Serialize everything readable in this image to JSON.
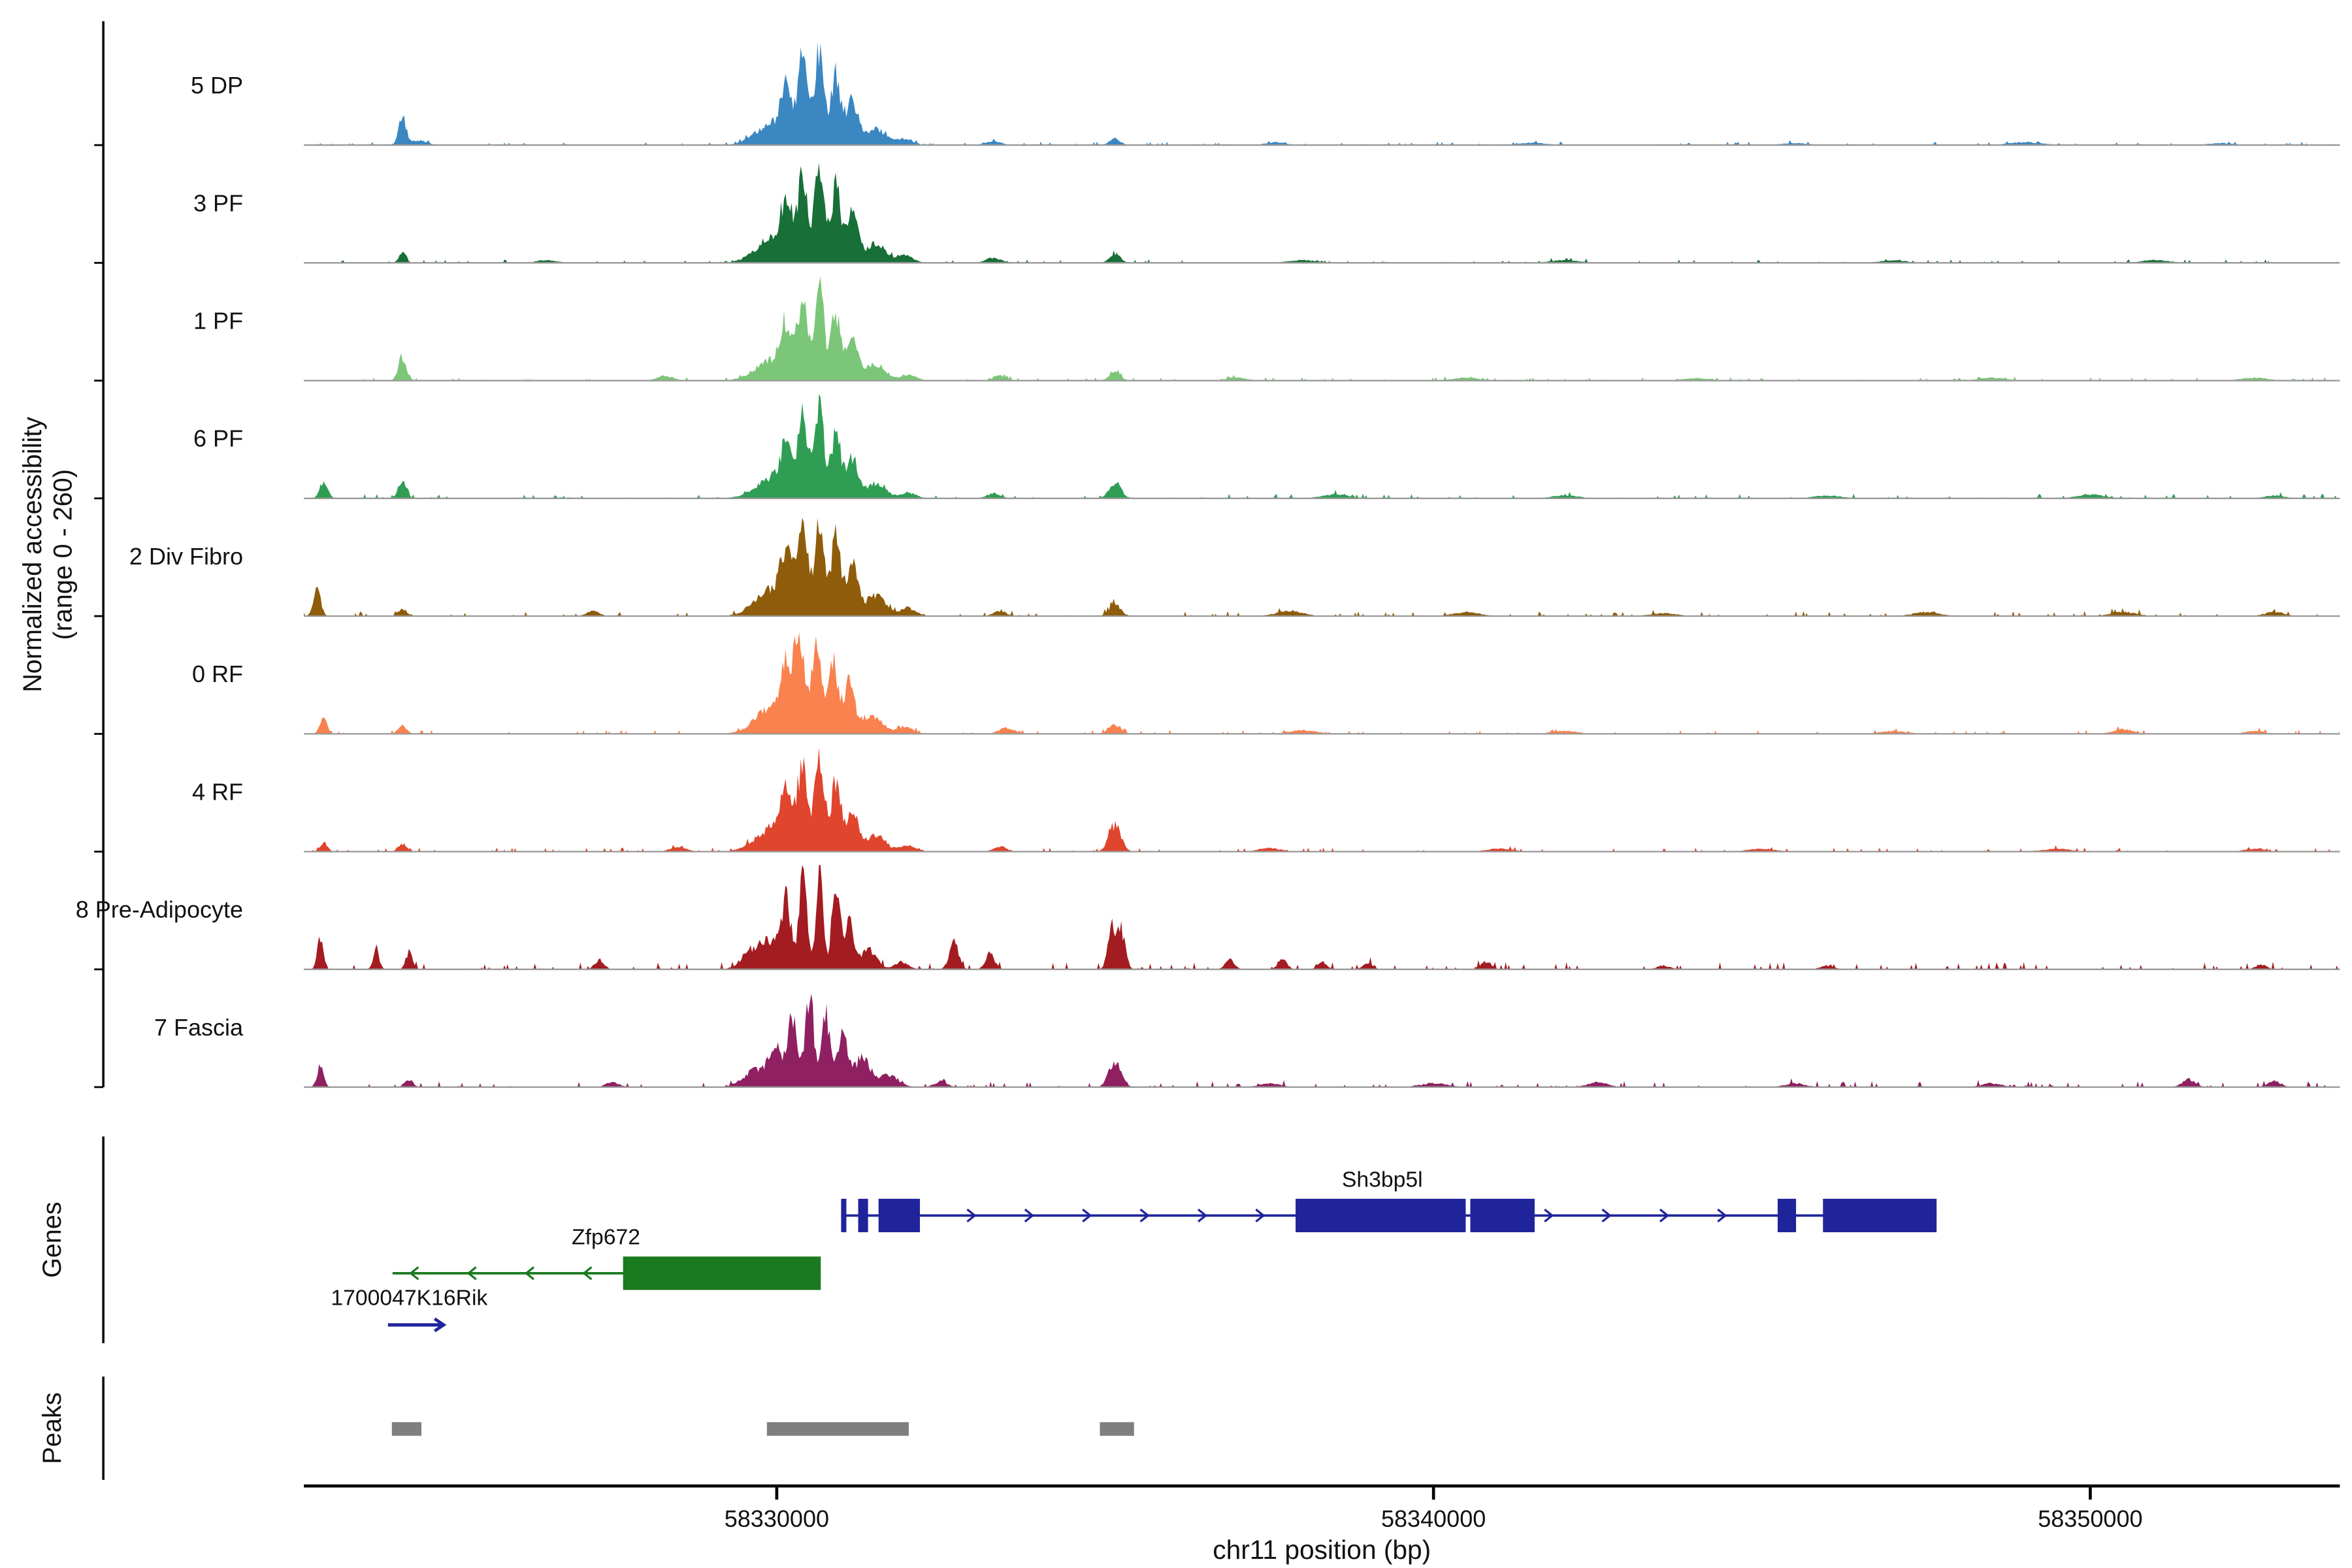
{
  "y_axis": {
    "label_line1": "Normalized accessibility",
    "label_line2": "(range 0 - 260)"
  },
  "x_axis": {
    "title": "chr11 position (bp)",
    "ticks": [
      {
        "bp": 58330000,
        "label": "58330000"
      },
      {
        "bp": 58340000,
        "label": "58340000"
      },
      {
        "bp": 58350000,
        "label": "58350000"
      }
    ]
  },
  "sections": {
    "genes_label": "Genes",
    "peaks_label": "Peaks"
  },
  "chart_data": {
    "type": "area",
    "xlabel": "chr11 position (bp)",
    "ylabel": "Normalized accessibility (range 0 - 260)",
    "xlim": [
      58322800,
      58353800
    ],
    "y_range_label": "0 - 260",
    "tracks": [
      {
        "label": "5 DP",
        "color": "#3A87C2",
        "noise": 0.7,
        "bumps": [
          [
            58324300,
            55,
            0.3
          ],
          [
            58324550,
            120,
            0.05
          ],
          [
            58329950,
            260,
            0.22
          ],
          [
            58330150,
            85,
            0.45
          ],
          [
            58330400,
            75,
            0.85
          ],
          [
            58330650,
            70,
            1.0
          ],
          [
            58330900,
            75,
            0.72
          ],
          [
            58331150,
            85,
            0.45
          ],
          [
            58331500,
            150,
            0.18
          ],
          [
            58331950,
            120,
            0.07
          ],
          [
            58333300,
            120,
            0.04
          ],
          [
            58335150,
            80,
            0.07
          ],
          [
            58337600,
            150,
            0.03
          ],
          [
            58341500,
            200,
            0.025
          ],
          [
            58345500,
            200,
            0.02
          ],
          [
            58349000,
            250,
            0.03
          ],
          [
            58352000,
            200,
            0.02
          ]
        ]
      },
      {
        "label": "3 PF",
        "color": "#186F38",
        "noise": 0.7,
        "bumps": [
          [
            58324300,
            55,
            0.1
          ],
          [
            58326500,
            150,
            0.03
          ],
          [
            58329950,
            260,
            0.25
          ],
          [
            58330150,
            85,
            0.5
          ],
          [
            58330400,
            75,
            0.9
          ],
          [
            58330650,
            70,
            1.0
          ],
          [
            58330900,
            75,
            0.78
          ],
          [
            58331150,
            85,
            0.5
          ],
          [
            58331500,
            150,
            0.2
          ],
          [
            58331950,
            120,
            0.08
          ],
          [
            58333300,
            120,
            0.05
          ],
          [
            58335150,
            80,
            0.1
          ],
          [
            58338000,
            200,
            0.03
          ],
          [
            58342000,
            200,
            0.03
          ],
          [
            58347000,
            200,
            0.025
          ],
          [
            58351000,
            200,
            0.03
          ]
        ]
      },
      {
        "label": "1 PF",
        "color": "#7CC679",
        "noise": 0.7,
        "bumps": [
          [
            58324300,
            60,
            0.25
          ],
          [
            58328300,
            120,
            0.05
          ],
          [
            58329950,
            260,
            0.22
          ],
          [
            58330150,
            85,
            0.48
          ],
          [
            58330400,
            75,
            0.88
          ],
          [
            58330650,
            70,
            0.95
          ],
          [
            58330900,
            75,
            0.7
          ],
          [
            58331150,
            85,
            0.45
          ],
          [
            58331500,
            150,
            0.18
          ],
          [
            58332000,
            120,
            0.06
          ],
          [
            58333400,
            100,
            0.05
          ],
          [
            58335150,
            80,
            0.09
          ],
          [
            58337000,
            150,
            0.03
          ],
          [
            58340500,
            200,
            0.03
          ],
          [
            58344000,
            200,
            0.025
          ],
          [
            58348500,
            200,
            0.03
          ],
          [
            58352500,
            200,
            0.03
          ]
        ]
      },
      {
        "label": "6 PF",
        "color": "#2F9E54",
        "noise": 0.9,
        "bumps": [
          [
            58323100,
            60,
            0.18
          ],
          [
            58324300,
            60,
            0.2
          ],
          [
            58329950,
            260,
            0.22
          ],
          [
            58330150,
            85,
            0.45
          ],
          [
            58330400,
            75,
            0.82
          ],
          [
            58330650,
            70,
            0.92
          ],
          [
            58330900,
            75,
            0.68
          ],
          [
            58331150,
            85,
            0.42
          ],
          [
            58331500,
            150,
            0.16
          ],
          [
            58332000,
            120,
            0.06
          ],
          [
            58333300,
            100,
            0.05
          ],
          [
            58335150,
            90,
            0.16
          ],
          [
            58338500,
            200,
            0.04
          ],
          [
            58342000,
            200,
            0.03
          ],
          [
            58346000,
            200,
            0.03
          ],
          [
            58350000,
            200,
            0.04
          ],
          [
            58352800,
            150,
            0.03
          ]
        ]
      },
      {
        "label": "2 Div Fibro",
        "color": "#8E5C0A",
        "noise": 1.0,
        "bumps": [
          [
            58323000,
            55,
            0.3
          ],
          [
            58324300,
            60,
            0.08
          ],
          [
            58327200,
            100,
            0.05
          ],
          [
            58329950,
            260,
            0.28
          ],
          [
            58330150,
            85,
            0.55
          ],
          [
            58330400,
            75,
            0.92
          ],
          [
            58330650,
            70,
            1.0
          ],
          [
            58330900,
            75,
            0.8
          ],
          [
            58331150,
            85,
            0.55
          ],
          [
            58331500,
            150,
            0.22
          ],
          [
            58332000,
            120,
            0.08
          ],
          [
            58333400,
            100,
            0.05
          ],
          [
            58335150,
            90,
            0.12
          ],
          [
            58337800,
            200,
            0.05
          ],
          [
            58340500,
            200,
            0.04
          ],
          [
            58343500,
            200,
            0.03
          ],
          [
            58347500,
            200,
            0.04
          ],
          [
            58350500,
            200,
            0.04
          ],
          [
            58352800,
            150,
            0.04
          ]
        ]
      },
      {
        "label": "0 RF",
        "color": "#F9824F",
        "noise": 0.8,
        "bumps": [
          [
            58323100,
            55,
            0.15
          ],
          [
            58324300,
            60,
            0.1
          ],
          [
            58329950,
            260,
            0.28
          ],
          [
            58330150,
            85,
            0.55
          ],
          [
            58330350,
            70,
            0.95
          ],
          [
            58330600,
            70,
            1.0
          ],
          [
            58330850,
            75,
            0.8
          ],
          [
            58331100,
            85,
            0.5
          ],
          [
            58331450,
            150,
            0.2
          ],
          [
            58331950,
            120,
            0.08
          ],
          [
            58333500,
            120,
            0.06
          ],
          [
            58335150,
            90,
            0.1
          ],
          [
            58338000,
            200,
            0.04
          ],
          [
            58342000,
            200,
            0.03
          ],
          [
            58347000,
            200,
            0.03
          ],
          [
            58350500,
            150,
            0.05
          ],
          [
            58352500,
            150,
            0.03
          ]
        ]
      },
      {
        "label": "4 RF",
        "color": "#E0452D",
        "noise": 0.8,
        "bumps": [
          [
            58323100,
            55,
            0.1
          ],
          [
            58324300,
            60,
            0.08
          ],
          [
            58328500,
            120,
            0.05
          ],
          [
            58329950,
            260,
            0.25
          ],
          [
            58330150,
            85,
            0.5
          ],
          [
            58330400,
            75,
            0.88
          ],
          [
            58330650,
            70,
            0.95
          ],
          [
            58330900,
            75,
            0.72
          ],
          [
            58331150,
            85,
            0.45
          ],
          [
            58331500,
            150,
            0.18
          ],
          [
            58332000,
            120,
            0.07
          ],
          [
            58333400,
            100,
            0.05
          ],
          [
            58335150,
            90,
            0.28
          ],
          [
            58337500,
            150,
            0.04
          ],
          [
            58341000,
            200,
            0.03
          ],
          [
            58345000,
            200,
            0.03
          ],
          [
            58349500,
            200,
            0.03
          ],
          [
            58352500,
            150,
            0.03
          ]
        ]
      },
      {
        "label": "8 Pre-Adipocyte",
        "color": "#A31C21",
        "noise": 1.5,
        "bumps": [
          [
            58323050,
            45,
            0.32
          ],
          [
            58323900,
            45,
            0.22
          ],
          [
            58324400,
            50,
            0.18
          ],
          [
            58327300,
            70,
            0.1
          ],
          [
            58329600,
            150,
            0.15
          ],
          [
            58329950,
            200,
            0.3
          ],
          [
            58330150,
            70,
            0.55
          ],
          [
            58330400,
            60,
            0.95
          ],
          [
            58330650,
            55,
            1.0
          ],
          [
            58330900,
            60,
            0.9
          ],
          [
            58331100,
            70,
            0.5
          ],
          [
            58331400,
            120,
            0.2
          ],
          [
            58331900,
            100,
            0.08
          ],
          [
            58332700,
            70,
            0.28
          ],
          [
            58333250,
            70,
            0.16
          ],
          [
            58335100,
            60,
            0.45
          ],
          [
            58335250,
            60,
            0.4
          ],
          [
            58336900,
            70,
            0.1
          ],
          [
            58337700,
            70,
            0.1
          ],
          [
            58338300,
            70,
            0.08
          ],
          [
            58339000,
            80,
            0.06
          ],
          [
            58340800,
            80,
            0.08
          ],
          [
            58343500,
            100,
            0.04
          ],
          [
            58346000,
            100,
            0.04
          ],
          [
            58352600,
            80,
            0.05
          ]
        ]
      },
      {
        "label": "7 Fascia",
        "color": "#8F2061",
        "noise": 1.2,
        "bumps": [
          [
            58323050,
            50,
            0.2
          ],
          [
            58324400,
            60,
            0.08
          ],
          [
            58327500,
            100,
            0.05
          ],
          [
            58329700,
            200,
            0.18
          ],
          [
            58330000,
            100,
            0.4
          ],
          [
            58330250,
            70,
            0.75
          ],
          [
            58330500,
            65,
            0.95
          ],
          [
            58330750,
            70,
            0.72
          ],
          [
            58331000,
            80,
            0.5
          ],
          [
            58331300,
            120,
            0.3
          ],
          [
            58331700,
            150,
            0.12
          ],
          [
            58332500,
            100,
            0.06
          ],
          [
            58335150,
            90,
            0.28
          ],
          [
            58337500,
            150,
            0.04
          ],
          [
            58340000,
            200,
            0.04
          ],
          [
            58342500,
            150,
            0.05
          ],
          [
            58345500,
            150,
            0.04
          ],
          [
            58348500,
            150,
            0.04
          ],
          [
            58351500,
            100,
            0.08
          ],
          [
            58352800,
            100,
            0.06
          ]
        ]
      }
    ],
    "genes": [
      {
        "name": "Sh3bp5l",
        "color": "#1F249B",
        "strand": "+",
        "line": [
          58330980,
          58347660
        ],
        "exons": [
          [
            58330980,
            58331060
          ],
          [
            58331240,
            58331390
          ],
          [
            58331550,
            58332180
          ],
          [
            58337900,
            58340490
          ],
          [
            58340560,
            58341540
          ],
          [
            58345240,
            58345520
          ],
          [
            58345930,
            58347660
          ]
        ],
        "label_bp": 58339220,
        "label_anchor": "middle",
        "row_y": 800,
        "label_dy": -19
      },
      {
        "name": "Zfp672",
        "color": "#1A7A1F",
        "strand": "-",
        "line": [
          58324150,
          58330670
        ],
        "exons": [
          [
            58327660,
            58330670
          ]
        ],
        "label_bp": 58327400,
        "label_anchor": "middle",
        "row_y": 838,
        "label_dy": -19
      },
      {
        "name": "1700047K16Rik",
        "color": "#1F249B",
        "strand": "+",
        "line": [
          58324080,
          58324930
        ],
        "exons": [],
        "label_bp": 58323210,
        "label_anchor": "start",
        "row_y": 872,
        "label_dy": -13
      }
    ],
    "peaks": [
      [
        58324140,
        58324590
      ],
      [
        58329850,
        58332010
      ],
      [
        58334920,
        58335440
      ]
    ],
    "peaks_color": "#7F7F7F"
  }
}
